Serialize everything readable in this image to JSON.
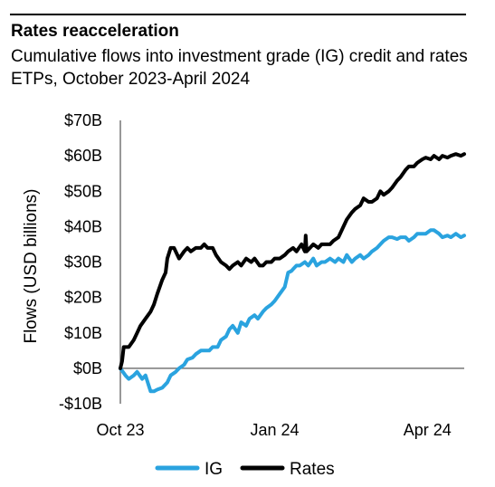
{
  "title": "Rates reacceleration",
  "subtitle": "Cumulative flows into investment grade (IG) credit and rates ETPs, October 2023-April 2024",
  "colors": {
    "ig": "#2aa3df",
    "rates": "#000000",
    "axis": "#777777"
  },
  "chart_data": {
    "type": "line",
    "ylabel": "Flows (USD billions)",
    "ylim": [
      -10,
      70
    ],
    "yticks": [
      70,
      60,
      50,
      40,
      30,
      20,
      10,
      0,
      -10
    ],
    "ytick_labels": [
      "$70B",
      "$60B",
      "$50B",
      "$40B",
      "$30B",
      "$20B",
      "$10B",
      "$0B",
      "-$10B"
    ],
    "xlim": [
      0,
      205
    ],
    "xticks": [
      0,
      92,
      183
    ],
    "xtick_labels": [
      "Oct 23",
      "Jan 24",
      "Apr 24"
    ],
    "grid": false,
    "legend": "bottom-center",
    "series": [
      {
        "name": "IG",
        "x": [
          0,
          3,
          5,
          8,
          10,
          13,
          15,
          17,
          18,
          20,
          22,
          25,
          28,
          30,
          33,
          35,
          38,
          40,
          43,
          45,
          48,
          50,
          53,
          55,
          58,
          60,
          63,
          65,
          67,
          70,
          72,
          75,
          77,
          80,
          82,
          85,
          87,
          90,
          92,
          95,
          98,
          100,
          102,
          103,
          105,
          107,
          110,
          112,
          115,
          117,
          120,
          122,
          125,
          128,
          130,
          133,
          135,
          138,
          140,
          143,
          145,
          148,
          150,
          153,
          155,
          157,
          160,
          162,
          165,
          167,
          170,
          172,
          175,
          177,
          180,
          182,
          185,
          187,
          190,
          192,
          195,
          197,
          200,
          203,
          205
        ],
        "values": [
          0,
          -2,
          -3,
          -2,
          -1,
          -3,
          -2,
          -5,
          -6.5,
          -6.5,
          -6,
          -5.5,
          -4,
          -2,
          -1,
          0,
          1,
          2.5,
          3,
          4,
          5,
          5,
          5,
          6,
          6,
          8,
          9,
          11,
          12,
          10,
          13,
          12,
          14,
          15,
          14,
          16,
          17,
          18,
          19,
          21,
          23,
          27,
          27.5,
          28,
          29,
          29,
          30,
          29,
          31,
          29,
          30,
          30,
          31,
          30,
          31,
          30,
          32,
          30,
          31,
          32,
          31,
          32,
          33,
          34,
          35,
          36,
          37,
          37,
          36.5,
          37,
          37,
          36,
          37,
          38,
          38,
          38,
          39,
          39,
          38,
          37,
          37.5,
          37,
          38,
          37,
          37.5
        ]
      },
      {
        "name": "Rates",
        "x": [
          0,
          1,
          2,
          5,
          8,
          10,
          12,
          15,
          18,
          20,
          22,
          25,
          27,
          28,
          30,
          32,
          35,
          38,
          40,
          42,
          45,
          48,
          50,
          52,
          55,
          57,
          60,
          63,
          65,
          67,
          70,
          72,
          75,
          78,
          80,
          83,
          85,
          87,
          90,
          92,
          95,
          98,
          100,
          103,
          105,
          108,
          110,
          110.5,
          111,
          113,
          115,
          118,
          120,
          122,
          125,
          127,
          130,
          133,
          135,
          138,
          140,
          143,
          145,
          148,
          150,
          153,
          155,
          157,
          160,
          162,
          165,
          167,
          170,
          172,
          175,
          177,
          180,
          182,
          185,
          187,
          190,
          192,
          195,
          197,
          200,
          203,
          205
        ],
        "values": [
          0,
          2,
          6,
          6,
          8,
          10,
          12,
          14,
          16,
          18,
          21,
          25,
          27,
          31,
          34,
          34,
          31,
          33,
          34,
          33,
          34,
          34,
          35,
          34,
          34,
          32,
          30,
          29,
          28,
          29,
          30,
          29,
          31,
          30,
          31,
          29,
          29,
          30,
          30,
          31,
          31,
          32,
          33,
          34,
          33,
          35,
          33,
          37.5,
          33,
          34,
          35,
          34,
          35,
          35,
          35,
          36,
          37,
          40,
          42,
          44,
          45,
          46,
          48,
          47,
          47,
          48,
          50,
          49,
          50,
          51,
          53,
          54,
          56,
          57,
          57,
          58,
          59,
          59.5,
          59,
          60,
          59,
          60,
          59.5,
          60,
          60.5,
          60,
          60.5
        ]
      }
    ]
  }
}
